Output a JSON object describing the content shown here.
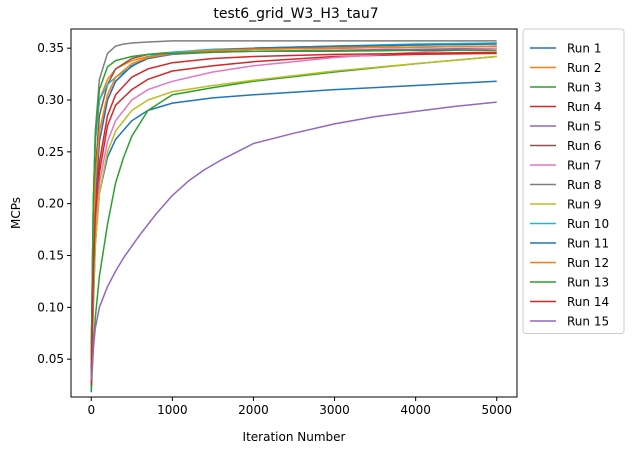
{
  "chart_data": {
    "type": "line",
    "title": "test6_grid_W3_H3_tau7",
    "xlabel": "Iteration Number",
    "ylabel": "MCPs",
    "xlim": [
      -250,
      5250
    ],
    "ylim": [
      0.0135,
      0.3685
    ],
    "x_ticks": [
      0,
      1000,
      2000,
      3000,
      4000,
      5000
    ],
    "x_tick_labels": [
      "0",
      "1000",
      "2000",
      "3000",
      "4000",
      "5000"
    ],
    "y_ticks": [
      0.05,
      0.1,
      0.15,
      0.2,
      0.25,
      0.3,
      0.35
    ],
    "y_tick_labels": [
      "0.05",
      "0.10",
      "0.15",
      "0.20",
      "0.25",
      "0.30",
      "0.35"
    ],
    "grid": false,
    "legend_position": "outside-right",
    "series": [
      {
        "name": "Run 1",
        "color": "#1f77b4",
        "x": [
          0,
          25,
          50,
          100,
          200,
          300,
          500,
          700,
          1000,
          1500,
          2000,
          3000,
          4000,
          5000
        ],
        "y": [
          0.018,
          0.1,
          0.16,
          0.21,
          0.245,
          0.262,
          0.28,
          0.29,
          0.297,
          0.302,
          0.305,
          0.31,
          0.314,
          0.318
        ]
      },
      {
        "name": "Run 2",
        "color": "#ff7f0e",
        "x": [
          0,
          25,
          50,
          100,
          200,
          300,
          500,
          700,
          1000,
          1500,
          2000,
          3000,
          4000,
          5000
        ],
        "y": [
          0.05,
          0.2,
          0.26,
          0.3,
          0.32,
          0.33,
          0.338,
          0.342,
          0.345,
          0.347,
          0.349,
          0.351,
          0.353,
          0.355
        ]
      },
      {
        "name": "Run 3",
        "color": "#2ca02c",
        "x": [
          0,
          25,
          50,
          100,
          200,
          300,
          400,
          500,
          700,
          1000,
          1500,
          2000,
          3000,
          4000,
          5000
        ],
        "y": [
          0.02,
          0.06,
          0.09,
          0.13,
          0.18,
          0.22,
          0.245,
          0.265,
          0.29,
          0.305,
          0.312,
          0.318,
          0.327,
          0.335,
          0.342
        ]
      },
      {
        "name": "Run 4",
        "color": "#d62728",
        "x": [
          0,
          25,
          50,
          100,
          200,
          300,
          500,
          700,
          1000,
          1500,
          2000,
          3000,
          4000,
          5000
        ],
        "y": [
          0.025,
          0.12,
          0.18,
          0.23,
          0.275,
          0.295,
          0.31,
          0.32,
          0.328,
          0.333,
          0.337,
          0.342,
          0.344,
          0.345
        ]
      },
      {
        "name": "Run 5",
        "color": "#9467bd",
        "x": [
          0,
          25,
          50,
          100,
          200,
          300,
          500,
          700,
          1000,
          1500,
          2000,
          3000,
          4000,
          5000
        ],
        "y": [
          0.03,
          0.14,
          0.2,
          0.26,
          0.3,
          0.318,
          0.333,
          0.34,
          0.344,
          0.346,
          0.347,
          0.348,
          0.349,
          0.35
        ]
      },
      {
        "name": "Run 6",
        "color": "#8c564b",
        "x": [
          0,
          25,
          50,
          100,
          200,
          300,
          500,
          700,
          1000,
          1500,
          2000,
          3000,
          4000,
          5000
        ],
        "y": [
          0.04,
          0.17,
          0.23,
          0.285,
          0.315,
          0.33,
          0.34,
          0.344,
          0.346,
          0.348,
          0.349,
          0.35,
          0.351,
          0.352
        ]
      },
      {
        "name": "Run 7",
        "color": "#e377c2",
        "x": [
          0,
          25,
          50,
          100,
          200,
          300,
          500,
          700,
          1000,
          1500,
          2000,
          3000,
          4000,
          5000
        ],
        "y": [
          0.035,
          0.11,
          0.17,
          0.22,
          0.26,
          0.28,
          0.3,
          0.31,
          0.318,
          0.327,
          0.333,
          0.341,
          0.346,
          0.35
        ]
      },
      {
        "name": "Run 8",
        "color": "#7f7f7f",
        "x": [
          0,
          25,
          50,
          100,
          200,
          300,
          400,
          500,
          700,
          1000,
          2000,
          3000,
          4000,
          5000
        ],
        "y": [
          0.06,
          0.2,
          0.27,
          0.32,
          0.345,
          0.352,
          0.354,
          0.355,
          0.356,
          0.357,
          0.357,
          0.357,
          0.357,
          0.357
        ]
      },
      {
        "name": "Run 9",
        "color": "#bcbd22",
        "x": [
          0,
          25,
          50,
          100,
          200,
          300,
          500,
          700,
          1000,
          1500,
          2000,
          3000,
          4000,
          5000
        ],
        "y": [
          0.03,
          0.11,
          0.16,
          0.21,
          0.25,
          0.27,
          0.29,
          0.3,
          0.308,
          0.314,
          0.319,
          0.328,
          0.335,
          0.342
        ]
      },
      {
        "name": "Run 10",
        "color": "#17becf",
        "x": [
          0,
          25,
          50,
          100,
          200,
          300,
          400,
          500,
          600,
          700,
          1000,
          1500,
          2000,
          3000,
          4000,
          5000
        ],
        "y": [
          0.05,
          0.2,
          0.26,
          0.3,
          0.315,
          0.322,
          0.327,
          0.332,
          0.337,
          0.342,
          0.346,
          0.349,
          0.35,
          0.352,
          0.354,
          0.355
        ]
      },
      {
        "name": "Run 11",
        "color": "#1f77b4",
        "x": [
          0,
          25,
          50,
          100,
          200,
          300,
          500,
          700,
          1000,
          1500,
          2000,
          3000,
          4000,
          5000
        ],
        "y": [
          0.04,
          0.15,
          0.21,
          0.26,
          0.3,
          0.318,
          0.333,
          0.34,
          0.345,
          0.348,
          0.35,
          0.352,
          0.353,
          0.354
        ]
      },
      {
        "name": "Run 12",
        "color": "#ff7f0e",
        "x": [
          0,
          25,
          50,
          100,
          200,
          300,
          500,
          700,
          1000,
          1500,
          2000,
          3000,
          4000,
          5000
        ],
        "y": [
          0.045,
          0.16,
          0.22,
          0.27,
          0.305,
          0.322,
          0.335,
          0.341,
          0.345,
          0.348,
          0.349,
          0.35,
          0.351,
          0.352
        ]
      },
      {
        "name": "Run 13",
        "color": "#2ca02c",
        "x": [
          0,
          25,
          50,
          100,
          200,
          300,
          500,
          700,
          1000,
          1500,
          2000,
          3000,
          4000,
          5000
        ],
        "y": [
          0.05,
          0.2,
          0.265,
          0.31,
          0.332,
          0.338,
          0.342,
          0.344,
          0.345,
          0.346,
          0.347,
          0.347,
          0.348,
          0.348
        ]
      },
      {
        "name": "Run 14",
        "color": "#d62728",
        "x": [
          0,
          25,
          50,
          100,
          200,
          300,
          500,
          700,
          1000,
          1500,
          2000,
          3000,
          4000,
          5000
        ],
        "y": [
          0.03,
          0.13,
          0.19,
          0.24,
          0.285,
          0.305,
          0.322,
          0.33,
          0.336,
          0.34,
          0.342,
          0.344,
          0.345,
          0.346
        ]
      },
      {
        "name": "Run 15",
        "color": "#9467bd",
        "x": [
          0,
          25,
          50,
          100,
          200,
          300,
          400,
          600,
          800,
          1000,
          1200,
          1400,
          1600,
          1800,
          2000,
          2500,
          3000,
          3500,
          4000,
          4500,
          5000
        ],
        "y": [
          0.03,
          0.06,
          0.08,
          0.1,
          0.12,
          0.135,
          0.148,
          0.17,
          0.19,
          0.208,
          0.222,
          0.233,
          0.242,
          0.25,
          0.258,
          0.268,
          0.277,
          0.284,
          0.289,
          0.294,
          0.298
        ]
      }
    ]
  }
}
